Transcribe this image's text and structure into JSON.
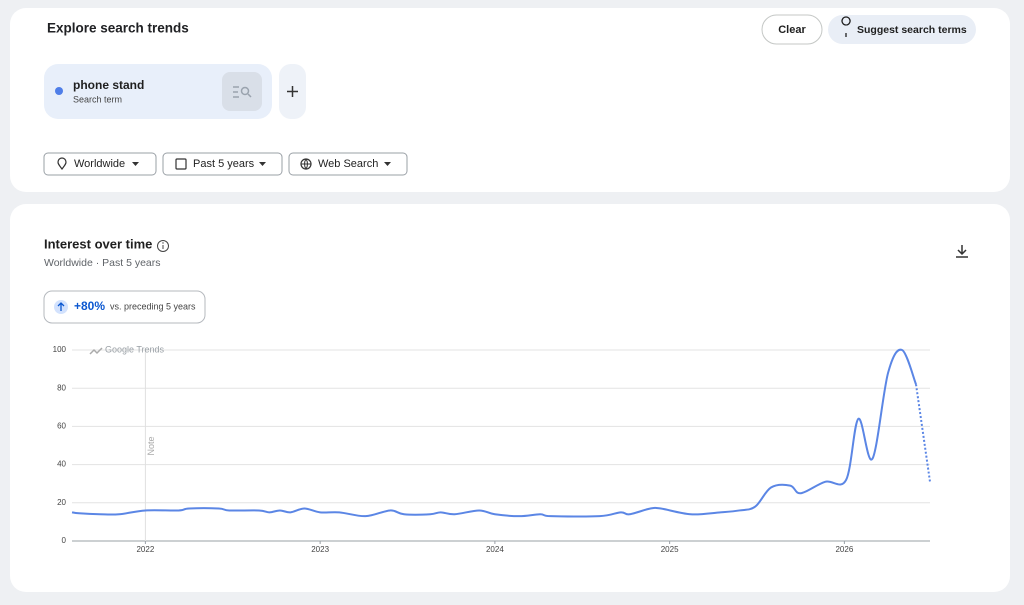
{
  "header": {
    "title": "Explore search trends",
    "clear": "Clear",
    "suggest": "Suggest search terms"
  },
  "term": {
    "name": "phone stand",
    "kind": "Search term"
  },
  "filters": [
    "Worldwide",
    "Past 5 years",
    "Web Search"
  ],
  "panel": {
    "title": "Interest over time",
    "subtitle": "Worldwide · Past 5 years",
    "change": "+80%",
    "change_note": "vs. preceding 5 years"
  },
  "chart_data": {
    "type": "line",
    "watermark": "Google Trends",
    "annotations": [
      {
        "x": 2022.0,
        "label": "Note"
      }
    ],
    "x": [
      2021.58,
      2021.62,
      2021.74,
      2021.85,
      2022.0,
      2022.19,
      2022.25,
      2022.42,
      2022.48,
      2022.65,
      2022.71,
      2022.77,
      2022.83,
      2022.91,
      2023.0,
      2023.11,
      2023.26,
      2023.4,
      2023.48,
      2023.63,
      2023.69,
      2023.77,
      2023.91,
      2024.0,
      2024.14,
      2024.26,
      2024.32,
      2024.6,
      2024.72,
      2024.77,
      2024.89,
      2024.95,
      2025.12,
      2025.29,
      2025.4,
      2025.49,
      2025.58,
      2025.69,
      2025.75,
      2025.89,
      2026.01,
      2026.08,
      2026.16,
      2026.25,
      2026.33,
      2026.41,
      2026.49
    ],
    "series": [
      {
        "color": "#5b86e5",
        "dashed": false,
        "values": [
          15,
          14.5,
          14,
          14,
          16,
          16,
          17,
          17,
          16,
          16,
          15,
          16,
          15,
          17,
          15,
          15,
          13,
          16,
          14,
          14,
          15,
          14,
          16,
          14,
          13,
          14,
          13,
          13,
          15,
          14,
          17,
          17,
          14,
          15,
          16,
          18,
          28,
          29,
          25,
          31,
          32,
          64,
          43,
          88,
          100,
          82,
          null
        ]
      },
      {
        "color": "#5b86e5",
        "dashed": true,
        "values": [
          null,
          null,
          null,
          null,
          null,
          null,
          null,
          null,
          null,
          null,
          null,
          null,
          null,
          null,
          null,
          null,
          null,
          null,
          null,
          null,
          null,
          null,
          null,
          null,
          null,
          null,
          null,
          null,
          null,
          null,
          null,
          null,
          null,
          null,
          null,
          null,
          null,
          null,
          null,
          null,
          null,
          null,
          null,
          null,
          null,
          82,
          31
        ]
      }
    ],
    "xlim": [
      2021.58,
      2026.49
    ],
    "xticks": [
      2022,
      2023,
      2024,
      2025,
      2026
    ],
    "ylim": [
      0,
      100
    ],
    "yticks": [
      0,
      20,
      40,
      60,
      80,
      100
    ],
    "grid": true
  }
}
